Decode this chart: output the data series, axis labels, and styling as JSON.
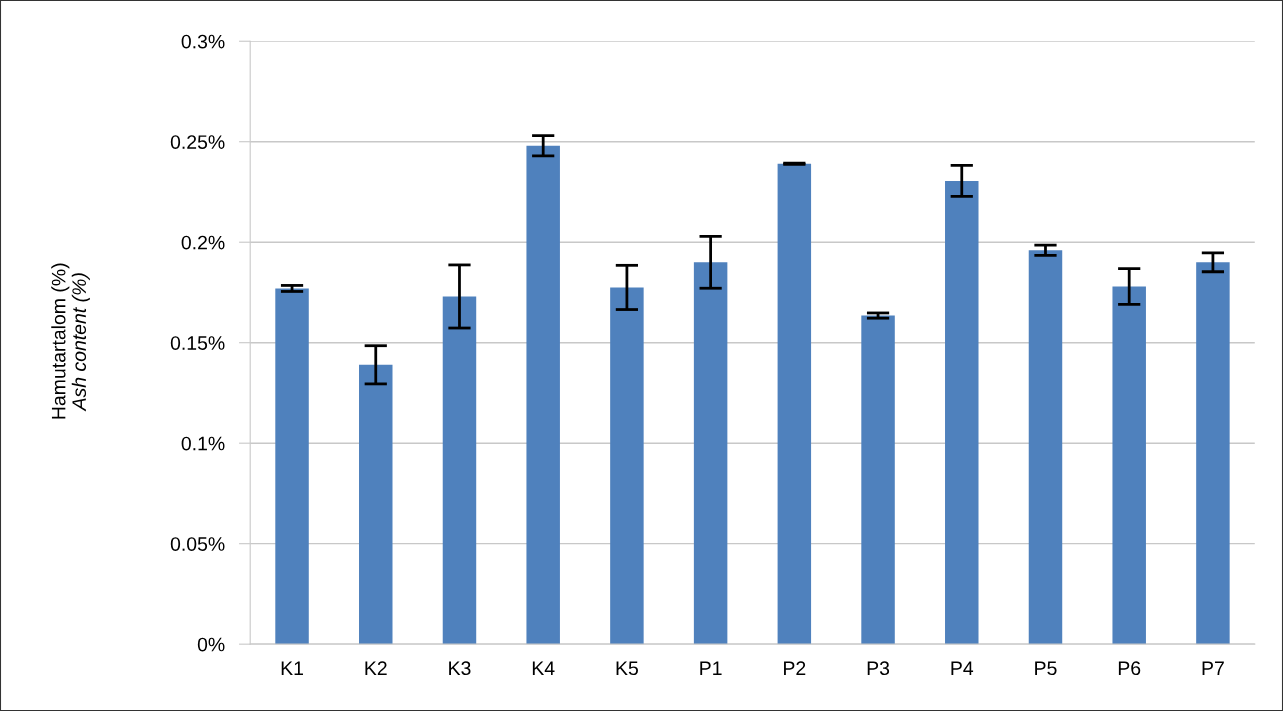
{
  "chart_data": {
    "type": "bar",
    "ylabel": "Hamutartalom (%)\nAsh content (%)",
    "categories": [
      "K1",
      "K2",
      "K3",
      "K4",
      "K5",
      "P1",
      "P2",
      "P3",
      "P4",
      "P5",
      "P6",
      "P7"
    ],
    "values": [
      0.177,
      0.139,
      0.173,
      0.248,
      0.1775,
      0.19,
      0.239,
      0.1635,
      0.2305,
      0.196,
      0.178,
      0.19
    ],
    "errors": [
      0.0015,
      0.0095,
      0.0157,
      0.005,
      0.011,
      0.0129,
      0.0003,
      0.0013,
      0.0077,
      0.0026,
      0.0089,
      0.0047
    ],
    "color": "#4f81bd",
    "ylim": [
      0,
      0.3
    ],
    "yticks": [
      {
        "value": 0,
        "label": "0%"
      },
      {
        "value": 0.05,
        "label": "0.05%"
      },
      {
        "value": 0.1,
        "label": "0.1%"
      },
      {
        "value": 0.15,
        "label": "0.15%"
      },
      {
        "value": 0.2,
        "label": "0.2%"
      },
      {
        "value": 0.25,
        "label": "0.25%"
      },
      {
        "value": 0.3,
        "label": "0.3%"
      }
    ],
    "grid": "y"
  }
}
